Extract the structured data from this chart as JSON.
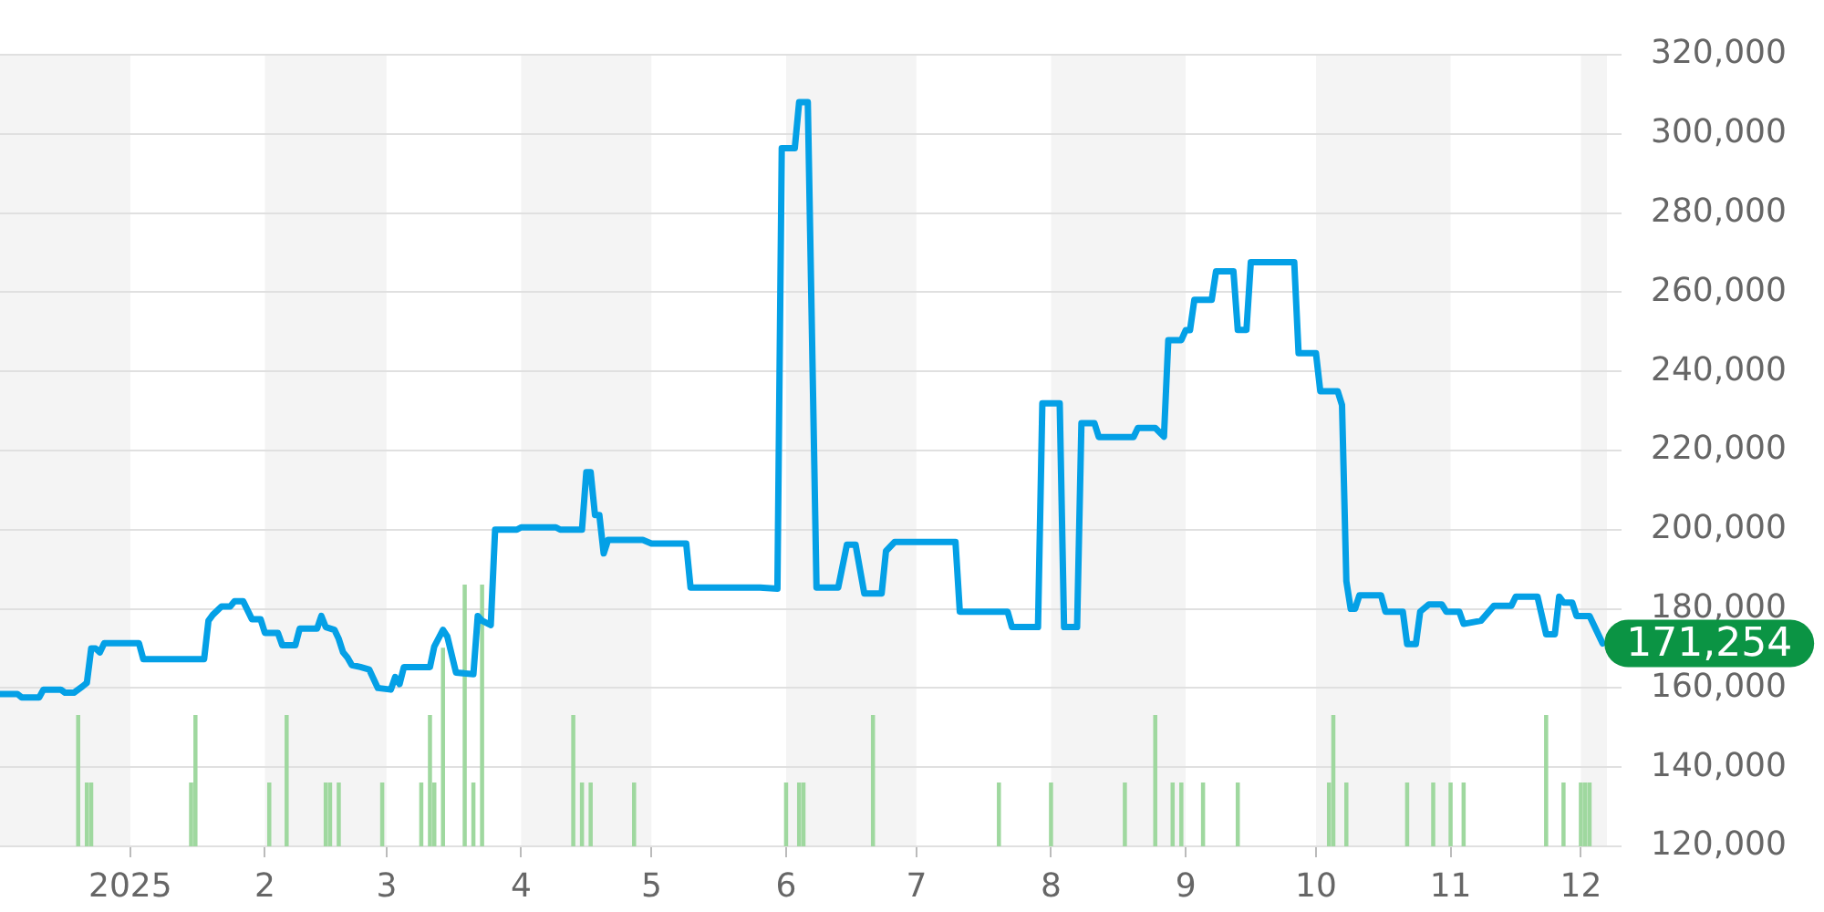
{
  "chart_data": {
    "type": "line",
    "series": [
      {
        "type": "bar",
        "color": "#9fd89f",
        "x": [
          "2024-12-20",
          "2024-12-22",
          "2024-12-23",
          "2025-01-15",
          "2025-01-16",
          "2025-02-02",
          "2025-02-06",
          "2025-02-15",
          "2025-02-16",
          "2025-02-18",
          "2025-02-28",
          "2025-03-09",
          "2025-03-11",
          "2025-03-12",
          "2025-03-14",
          "2025-03-19",
          "2025-03-21",
          "2025-03-23",
          "2025-04-13",
          "2025-04-15",
          "2025-04-17",
          "2025-04-27",
          "2025-06-01",
          "2025-06-04",
          "2025-06-05",
          "2025-06-21",
          "2025-07-20",
          "2025-08-01",
          "2025-08-18",
          "2025-08-25",
          "2025-08-29",
          "2025-08-31",
          "2025-09-05",
          "2025-09-13",
          "2025-10-04",
          "2025-10-05",
          "2025-10-08",
          "2025-10-22",
          "2025-10-28",
          "2025-11-01",
          "2025-11-04",
          "2025-11-23",
          "2025-11-27",
          "2025-12-01",
          "2025-12-02",
          "2025-12-03"
        ],
        "values": [
          153000,
          136000,
          136000,
          136000,
          153000,
          136000,
          153000,
          136000,
          136000,
          136000,
          136000,
          136000,
          153000,
          136000,
          170000,
          186000,
          136000,
          186000,
          153000,
          136000,
          136000,
          136000,
          136000,
          136000,
          136000,
          153000,
          136000,
          136000,
          136000,
          153000,
          136000,
          136000,
          136000,
          136000,
          136000,
          153000,
          136000,
          136000,
          136000,
          136000,
          136000,
          153000,
          136000,
          136000,
          136000,
          136000
        ]
      },
      {
        "color": "#04a0e6",
        "x": [
          "2024-12-02",
          "2024-12-06",
          "2024-12-07",
          "2024-12-11",
          "2024-12-12",
          "2024-12-16",
          "2024-12-17",
          "2024-12-19",
          "2024-12-21",
          "2024-12-22",
          "2024-12-23",
          "2024-12-24",
          "2024-12-25",
          "2024-12-26",
          "2025-01-03",
          "2025-01-04",
          "2025-01-18",
          "2025-01-19",
          "2025-01-20",
          "2025-01-22",
          "2025-01-24",
          "2025-01-25",
          "2025-01-27",
          "2025-01-29",
          "2025-01-31",
          "2025-02-01",
          "2025-02-04",
          "2025-02-05",
          "2025-02-08",
          "2025-02-09",
          "2025-02-13",
          "2025-02-14",
          "2025-02-15",
          "2025-02-17",
          "2025-02-18",
          "2025-02-19",
          "2025-02-20",
          "2025-02-21",
          "2025-02-23",
          "2025-02-25",
          "2025-02-27",
          "2025-03-02",
          "2025-03-03",
          "2025-03-04",
          "2025-03-05",
          "2025-03-11",
          "2025-03-12",
          "2025-03-14",
          "2025-03-15",
          "2025-03-17",
          "2025-03-21",
          "2025-03-22",
          "2025-03-23",
          "2025-03-25",
          "2025-03-26",
          "2025-03-31",
          "2025-04-01",
          "2025-04-09",
          "2025-04-10",
          "2025-04-15",
          "2025-04-16",
          "2025-04-17",
          "2025-04-18",
          "2025-04-19",
          "2025-04-20",
          "2025-04-21",
          "2025-04-29",
          "2025-05-01",
          "2025-05-09",
          "2025-05-10",
          "2025-05-26",
          "2025-05-30",
          "2025-05-31",
          "2025-06-03",
          "2025-06-04",
          "2025-06-06",
          "2025-06-08",
          "2025-06-13",
          "2025-06-15",
          "2025-06-17",
          "2025-06-19",
          "2025-06-23",
          "2025-06-24",
          "2025-06-26",
          "2025-07-10",
          "2025-07-11",
          "2025-07-22",
          "2025-07-23",
          "2025-07-29",
          "2025-07-30",
          "2025-08-03",
          "2025-08-04",
          "2025-08-07",
          "2025-08-08",
          "2025-08-11",
          "2025-08-12",
          "2025-08-20",
          "2025-08-21",
          "2025-08-25",
          "2025-08-27",
          "2025-08-28",
          "2025-08-31",
          "2025-09-01",
          "2025-09-02",
          "2025-09-03",
          "2025-09-07",
          "2025-09-08",
          "2025-09-12",
          "2025-09-13",
          "2025-09-15",
          "2025-09-16",
          "2025-09-26",
          "2025-09-27",
          "2025-10-01",
          "2025-10-02",
          "2025-10-06",
          "2025-10-07",
          "2025-10-08",
          "2025-10-09",
          "2025-10-10",
          "2025-10-11",
          "2025-10-16",
          "2025-10-17",
          "2025-10-21",
          "2025-10-22",
          "2025-10-24",
          "2025-10-25",
          "2025-10-27",
          "2025-10-30",
          "2025-10-31",
          "2025-11-03",
          "2025-11-04",
          "2025-11-08",
          "2025-11-11",
          "2025-11-15",
          "2025-11-16",
          "2025-11-21",
          "2025-11-23",
          "2025-11-25",
          "2025-11-26",
          "2025-11-27",
          "2025-11-29",
          "2025-11-30",
          "2025-12-03",
          "2025-12-06"
        ],
        "values": [
          158500,
          158500,
          157600,
          157600,
          159600,
          159600,
          158800,
          158800,
          160400,
          161300,
          170000,
          170000,
          169000,
          171300,
          171300,
          167300,
          167300,
          177000,
          178500,
          180600,
          180600,
          181900,
          181900,
          177400,
          177400,
          173900,
          173900,
          170800,
          170800,
          175000,
          175000,
          178200,
          175400,
          174700,
          172400,
          169000,
          167700,
          165800,
          165300,
          164700,
          160000,
          159600,
          162800,
          161000,
          165300,
          165300,
          170500,
          174700,
          173000,
          163900,
          163500,
          178200,
          177000,
          175900,
          200000,
          200000,
          200600,
          200600,
          200000,
          200000,
          214500,
          214500,
          203700,
          203700,
          194000,
          197400,
          197400,
          196500,
          196500,
          185400,
          185400,
          185100,
          296400,
          296400,
          308000,
          308000,
          185400,
          185400,
          196200,
          196200,
          183900,
          183900,
          194600,
          196900,
          196900,
          179300,
          179300,
          175400,
          175400,
          231900,
          231900,
          175400,
          175400,
          226900,
          226900,
          223400,
          223400,
          225700,
          225700,
          223500,
          247900,
          247900,
          250400,
          250400,
          258100,
          258100,
          265300,
          265300,
          250500,
          250500,
          267600,
          267600,
          244600,
          244600,
          235000,
          235000,
          231500,
          187000,
          180000,
          180000,
          183400,
          183400,
          179300,
          179300,
          171100,
          171100,
          179300,
          181100,
          181100,
          179300,
          179300,
          176200,
          177000,
          180800,
          180800,
          183100,
          183100,
          173600,
          173600,
          183100,
          181600,
          181600,
          178200,
          178200,
          171254
        ]
      }
    ],
    "xlim": [
      "2024-12-02",
      "2025-12-07"
    ],
    "xticks": [
      {
        "value": "2025-01-01",
        "label": "2025"
      },
      {
        "value": "2025-02-01",
        "label": "2"
      },
      {
        "value": "2025-03-01",
        "label": "3"
      },
      {
        "value": "2025-04-01",
        "label": "4"
      },
      {
        "value": "2025-05-01",
        "label": "5"
      },
      {
        "value": "2025-06-01",
        "label": "6"
      },
      {
        "value": "2025-07-01",
        "label": "7"
      },
      {
        "value": "2025-08-01",
        "label": "8"
      },
      {
        "value": "2025-09-01",
        "label": "9"
      },
      {
        "value": "2025-10-01",
        "label": "10"
      },
      {
        "value": "2025-11-01",
        "label": "11"
      },
      {
        "value": "2025-12-01",
        "label": "12"
      }
    ],
    "ylim": [
      120000,
      320000
    ],
    "yticks": [
      {
        "value": 120000,
        "label": "120,000"
      },
      {
        "value": 140000,
        "label": "140,000"
      },
      {
        "value": 160000,
        "label": "160,000"
      },
      {
        "value": 180000,
        "label": "180,000"
      },
      {
        "value": 200000,
        "label": "200,000"
      },
      {
        "value": 220000,
        "label": "220,000"
      },
      {
        "value": 240000,
        "label": "240,000"
      },
      {
        "value": 260000,
        "label": "260,000"
      },
      {
        "value": 280000,
        "label": "280,000"
      },
      {
        "value": 300000,
        "label": "300,000"
      },
      {
        "value": 320000,
        "label": "320,000"
      }
    ],
    "grid": "y",
    "bands": [
      {
        "axis": "x",
        "from": "2024-12-02",
        "to": "2025-01-01",
        "color": "#f4f4f4"
      },
      {
        "axis": "x",
        "from": "2025-02-01",
        "to": "2025-03-01",
        "color": "#f4f4f4"
      },
      {
        "axis": "x",
        "from": "2025-04-01",
        "to": "2025-05-01",
        "color": "#f4f4f4"
      },
      {
        "axis": "x",
        "from": "2025-06-01",
        "to": "2025-07-01",
        "color": "#f4f4f4"
      },
      {
        "axis": "x",
        "from": "2025-08-01",
        "to": "2025-09-01",
        "color": "#f4f4f4"
      },
      {
        "axis": "x",
        "from": "2025-10-01",
        "to": "2025-11-01",
        "color": "#f4f4f4"
      },
      {
        "axis": "x",
        "from": "2025-12-01",
        "to": "2025-12-07",
        "color": "#f4f4f4"
      }
    ],
    "annotations": [
      {
        "text": "171,254",
        "x": "2025-12-06",
        "y": 171254
      }
    ]
  }
}
